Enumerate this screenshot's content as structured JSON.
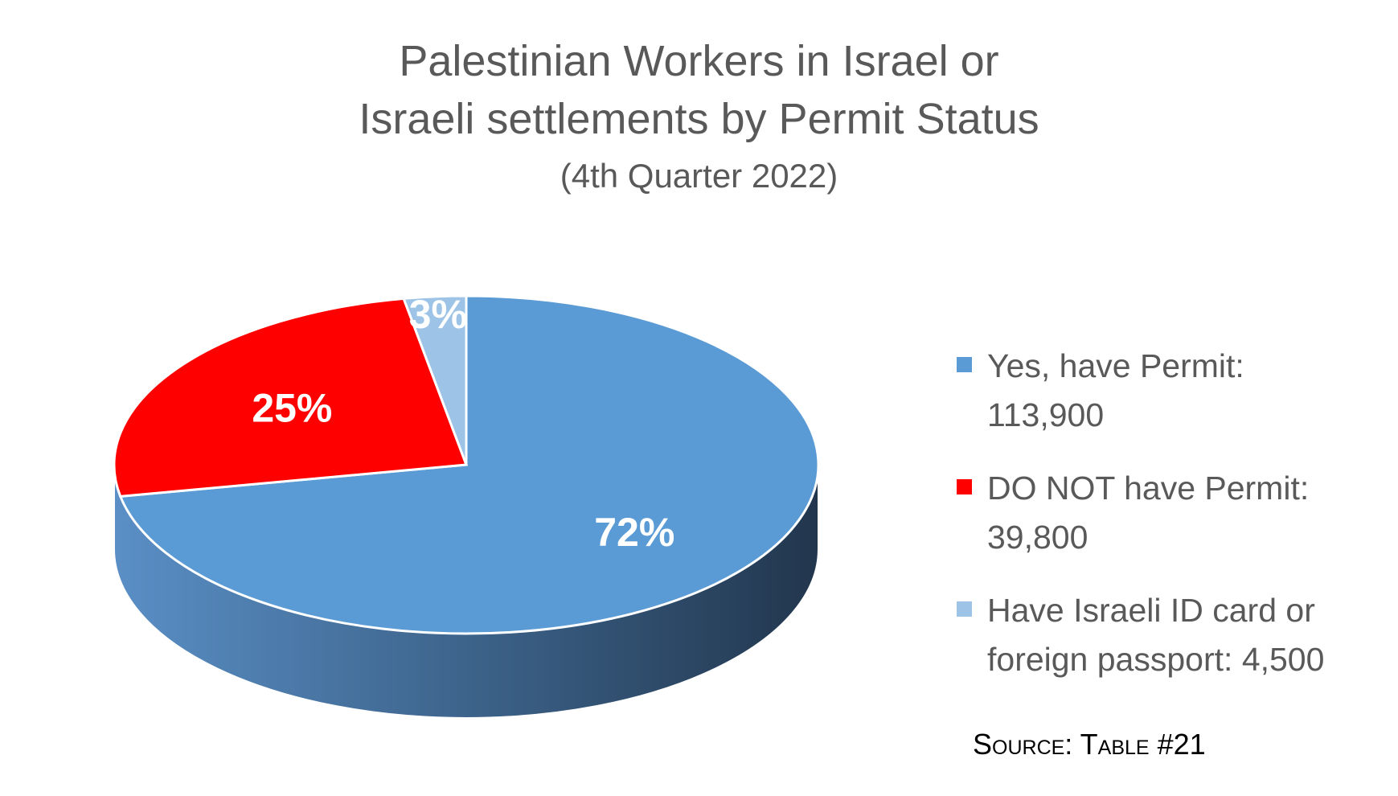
{
  "chart_data": {
    "type": "pie",
    "title_lines": [
      "Palestinian Workers in Israel or",
      "Israeli settlements by Permit Status"
    ],
    "subtitle": "(4th Quarter 2022)",
    "slices": [
      {
        "label": "Yes, have Permit:",
        "value_text": "113,900",
        "value": 113900,
        "percent_label": "72%",
        "color": "#5b9bd5"
      },
      {
        "label": "DO NOT have Permit:",
        "value_text": "39,800",
        "value": 39800,
        "percent_label": "25%",
        "color": "#ff0000"
      },
      {
        "label": "Have Israeli ID card or foreign passport:",
        "value_text": "4,500",
        "value": 4500,
        "percent_label": "3%",
        "color": "#9dc3e6"
      }
    ],
    "legend_position": "right",
    "style": "3d"
  },
  "source": "Source: Table #21",
  "colors": {
    "side_light": "#5588bd",
    "side_dark": "#22364d",
    "text": "#595959"
  }
}
